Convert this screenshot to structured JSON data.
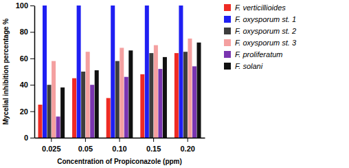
{
  "chart_data": {
    "type": "bar",
    "xlabel": "Concentration of Propiconazole (ppm)",
    "ylabel": "Mycelial inhibition percentage %",
    "categories": [
      "0.025",
      "0.05",
      "0.10",
      "0.15",
      "0.20"
    ],
    "series": [
      {
        "name": "F. verticillioides",
        "color": "#ee2b24",
        "values": [
          25,
          45,
          30,
          48,
          64
        ]
      },
      {
        "name": "F. oxysporum st. 1",
        "color": "#1f1ff2",
        "values": [
          100,
          100,
          100,
          100,
          100
        ]
      },
      {
        "name": "F. oxysporum st. 2",
        "color": "#3d3d3d",
        "values": [
          40,
          50,
          58,
          64,
          65
        ]
      },
      {
        "name": "F. oxysporum st. 3",
        "color": "#f4a0a0",
        "values": [
          58,
          65,
          68,
          70,
          75
        ]
      },
      {
        "name": "F. proliferatum",
        "color": "#7a35b0",
        "values": [
          16,
          40,
          46,
          52,
          54
        ]
      },
      {
        "name": "F. solani",
        "color": "#111111",
        "values": [
          38,
          51,
          66,
          61,
          72
        ]
      }
    ],
    "ylim": [
      0,
      100
    ],
    "yticks": [
      0,
      20,
      40,
      60,
      80,
      100
    ],
    "grid": false,
    "legend": "right"
  }
}
